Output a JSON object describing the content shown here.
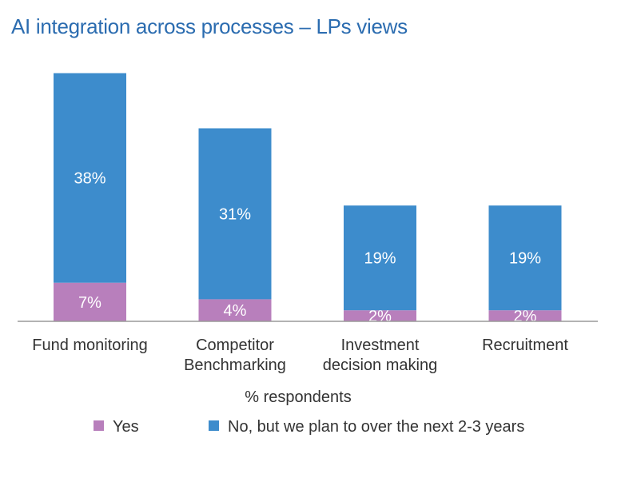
{
  "chart_data": {
    "type": "bar",
    "stacked": true,
    "title": "AI integration across processes – LPs views",
    "xlabel": "% respondents",
    "ylabel": "",
    "categories": [
      [
        "Fund monitoring"
      ],
      [
        "Competitor",
        "Benchmarking"
      ],
      [
        "Investment",
        "decision making"
      ],
      [
        "Recruitment"
      ]
    ],
    "series": [
      {
        "name": "Yes",
        "color": "#b87fbc",
        "values": [
          7,
          4,
          2,
          2
        ],
        "labels": [
          "7%",
          "4%",
          "2%",
          "2%"
        ]
      },
      {
        "name": "No, but we plan to over the next 2-3 years",
        "color": "#3d8ccc",
        "values": [
          38,
          31,
          19,
          19
        ],
        "labels": [
          "38%",
          "31%",
          "19%",
          "19%"
        ]
      }
    ],
    "ylim": [
      0,
      45
    ],
    "grid": false,
    "legend": "bottom"
  }
}
